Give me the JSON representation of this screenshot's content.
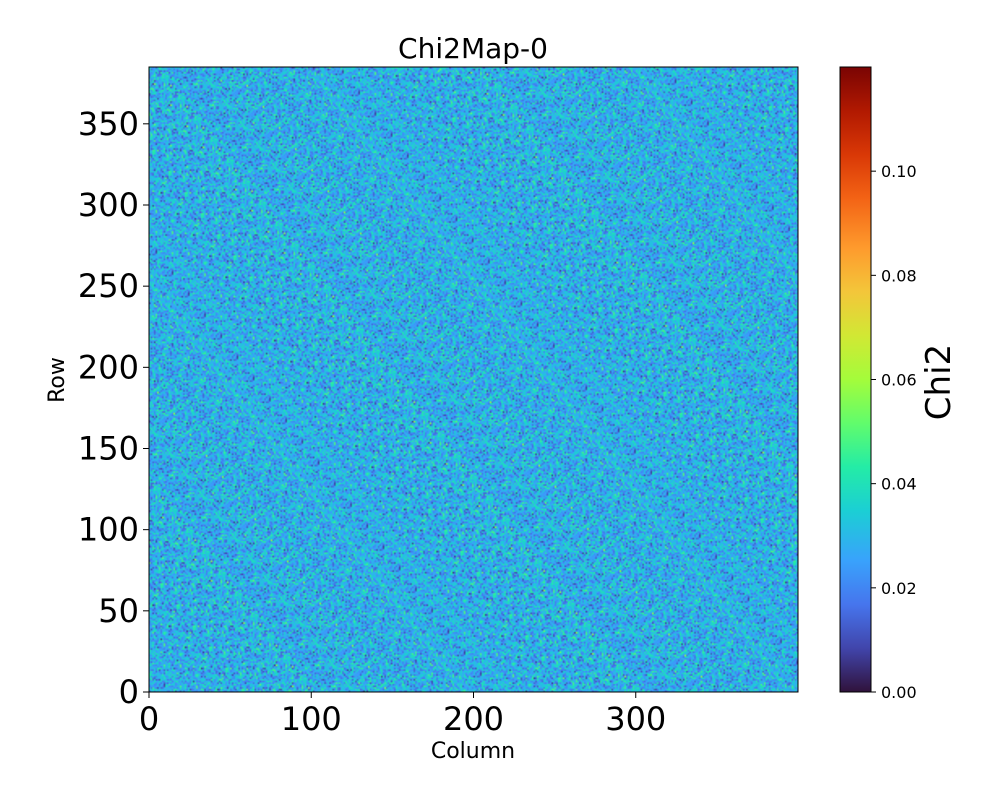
{
  "chart_data": {
    "type": "heatmap",
    "title": "Chi2Map-0",
    "xlabel": "Column",
    "ylabel": "Row",
    "xlim": [
      0,
      400
    ],
    "ylim": [
      0,
      385
    ],
    "xticks": [
      0,
      100,
      200,
      300
    ],
    "yticks": [
      0,
      50,
      100,
      150,
      200,
      250,
      300,
      350
    ],
    "grid_shape": {
      "columns": 400,
      "rows": 385
    },
    "colormap": "turbo",
    "colorbar": {
      "label": "Chi2",
      "range": [
        0,
        0.12
      ],
      "ticks": [
        "0.00",
        "0.02",
        "0.04",
        "0.06",
        "0.08",
        "0.10"
      ],
      "tick_values": [
        0,
        0.02,
        0.04,
        0.06,
        0.08,
        0.1
      ]
    },
    "value_distribution": {
      "typical_min": 0.005,
      "typical_max": 0.055,
      "typical_mean": 0.022
    },
    "grid": false
  }
}
